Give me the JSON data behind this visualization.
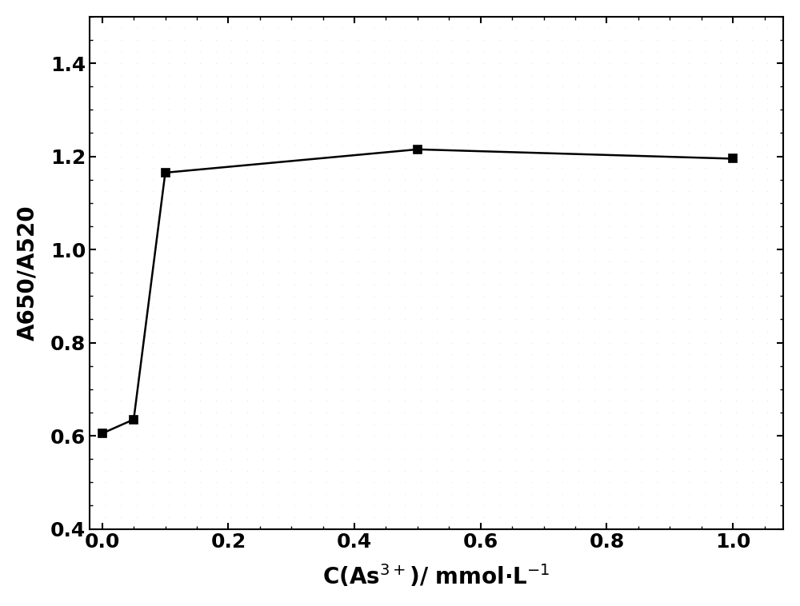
{
  "x": [
    0.0,
    0.05,
    0.1,
    0.5,
    1.0
  ],
  "y": [
    0.605,
    0.635,
    1.165,
    1.215,
    1.195
  ],
  "line_color": "#000000",
  "marker": "s",
  "marker_size": 7,
  "marker_facecolor": "#000000",
  "linewidth": 1.8,
  "xlim": [
    -0.02,
    1.08
  ],
  "ylim": [
    0.4,
    1.5
  ],
  "xticks": [
    0.0,
    0.2,
    0.4,
    0.6,
    0.8,
    1.0
  ],
  "yticks": [
    0.4,
    0.6,
    0.8,
    1.0,
    1.2,
    1.4
  ],
  "xlabel": "C(As$^{3+}$)/ mmol·L$^{-1}$",
  "ylabel": "A650/A520",
  "background_color": "#ffffff",
  "plot_bg_color": "#ffffff",
  "dot_color": "#c8c8c8",
  "xlabel_fontsize": 20,
  "ylabel_fontsize": 20,
  "tick_fontsize": 18
}
